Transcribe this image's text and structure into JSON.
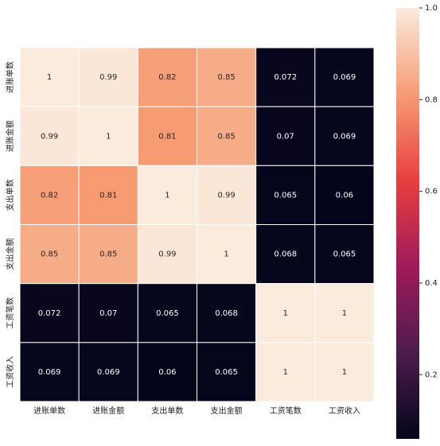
{
  "chart_data": {
    "type": "heatmap",
    "x_categories": [
      "进账单数",
      "进账金额",
      "支出单数",
      "支出金额",
      "工资笔数",
      "工资收入"
    ],
    "y_categories": [
      "进账单数",
      "进账金额",
      "支出单数",
      "支出金额",
      "工资笔数",
      "工资收入"
    ],
    "values": [
      [
        1,
        0.99,
        0.82,
        0.85,
        0.072,
        0.069
      ],
      [
        0.99,
        1,
        0.81,
        0.85,
        0.07,
        0.069
      ],
      [
        0.82,
        0.81,
        1,
        0.99,
        0.065,
        0.06
      ],
      [
        0.85,
        0.85,
        0.99,
        1,
        0.068,
        0.065
      ],
      [
        0.072,
        0.07,
        0.065,
        0.068,
        1,
        1
      ],
      [
        0.069,
        0.069,
        0.06,
        0.065,
        1,
        1
      ]
    ],
    "zlim": [
      0.06,
      1
    ],
    "zticks": [
      0.2,
      0.4,
      0.6,
      0.8,
      {
        "value": 1,
        "label": "1.0"
      }
    ],
    "colors": [
      "#03051a",
      "#4c1d4b",
      "#a11a5b",
      "#e83f3f",
      "#f69c73",
      "#faebdd"
    ]
  }
}
